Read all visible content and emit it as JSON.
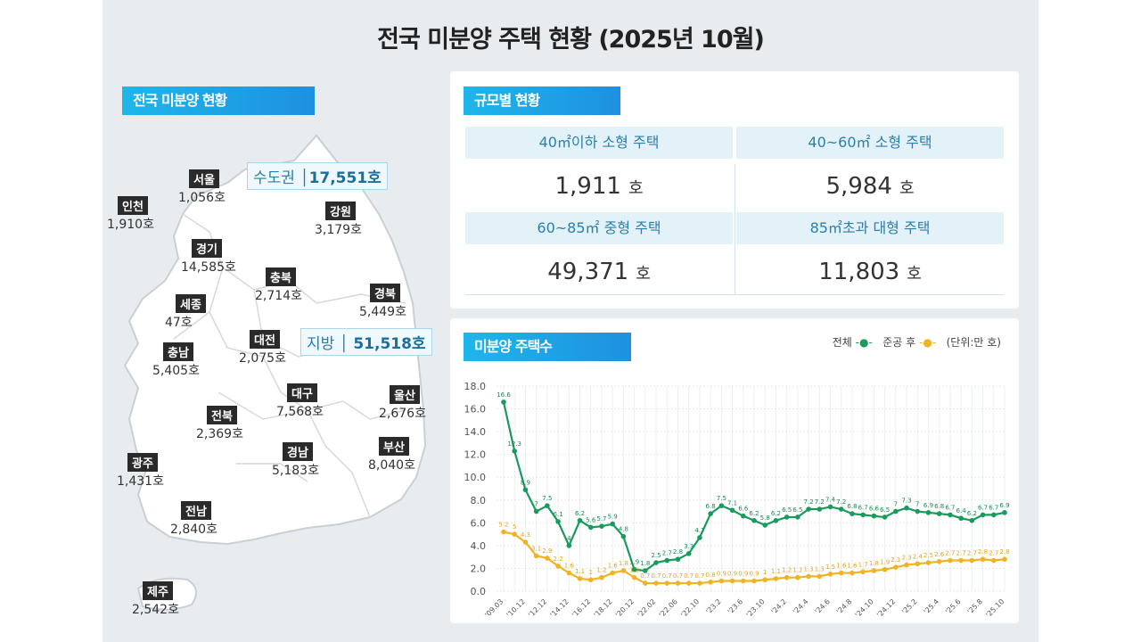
{
  "title": "전국 미분양 주택 현황 (2025년 10월)",
  "map_panel": {
    "heading": "전국 미분양 현황",
    "capital_area": {
      "label": "수도권",
      "value": "17,551호"
    },
    "provinces_total": {
      "label": "지방",
      "value": "51,518호"
    },
    "regions": [
      {
        "name": "서울",
        "value": "1,056호"
      },
      {
        "name": "인천",
        "value": "1,910호"
      },
      {
        "name": "강원",
        "value": "3,179호"
      },
      {
        "name": "경기",
        "value": "14,585호"
      },
      {
        "name": "충북",
        "value": "2,714호"
      },
      {
        "name": "경북",
        "value": "5,449호"
      },
      {
        "name": "세종",
        "value": "47호"
      },
      {
        "name": "대전",
        "value": "2,075호"
      },
      {
        "name": "충남",
        "value": "5,405호"
      },
      {
        "name": "대구",
        "value": "7,568호"
      },
      {
        "name": "울산",
        "value": "2,676호"
      },
      {
        "name": "전북",
        "value": "2,369호"
      },
      {
        "name": "경남",
        "value": "5,183호"
      },
      {
        "name": "부산",
        "value": "8,040호"
      },
      {
        "name": "광주",
        "value": "1,431호"
      },
      {
        "name": "전남",
        "value": "2,840호"
      },
      {
        "name": "제주",
        "value": "2,542호"
      }
    ]
  },
  "size_panel": {
    "heading": "규모별 현황",
    "unit": "호",
    "cells": [
      {
        "label": "40㎡이하 소형 주택",
        "value": "1,911"
      },
      {
        "label": "40~60㎡ 소형 주택",
        "value": "5,984"
      },
      {
        "label": "60~85㎡ 중형 주택",
        "value": "49,371"
      },
      {
        "label": "85㎡초과 대형 주택",
        "value": "11,803"
      }
    ]
  },
  "chart_panel": {
    "heading": "미분양 주택수",
    "legend_total": "전체",
    "legend_completed": "준공 후",
    "unit_note": "(단위:만 호)"
  },
  "colors": {
    "total": "#1a9a5c",
    "completed": "#f0b323",
    "accent": "#1fb6ea"
  },
  "chart_data": {
    "type": "line",
    "ylim": [
      0,
      18
    ],
    "yticks": [
      "0.0",
      "2.0",
      "4.0",
      "6.0",
      "8.0",
      "10.0",
      "12.0",
      "14.0",
      "16.0",
      "18.0"
    ],
    "xtick_labels": [
      "'09.03",
      "'10.12",
      "'12.12",
      "'14.12",
      "'16.12",
      "'18.12",
      "'20.12",
      "'22.02",
      "'22.06",
      "'22.10",
      "'23.2",
      "'23.6",
      "'23.10",
      "'24.2",
      "'24.4",
      "'24.6",
      "'24.8",
      "'24.10",
      "'24.12",
      "'25.2",
      "'25.4",
      "'25.6",
      "'25.8",
      "'25.10"
    ],
    "grid": true,
    "legend_position": "top-right",
    "series": [
      {
        "name": "전체",
        "values": [
          16.6,
          12.3,
          8.9,
          7.0,
          7.5,
          6.1,
          4.0,
          6.2,
          5.6,
          5.7,
          5.9,
          4.8,
          1.9,
          1.8,
          2.5,
          2.7,
          2.8,
          3.3,
          4.7,
          6.8,
          7.5,
          7.1,
          6.6,
          6.2,
          5.8,
          6.2,
          6.5,
          6.5,
          7.2,
          7.2,
          7.4,
          7.2,
          6.8,
          6.7,
          6.6,
          6.5,
          7.0,
          7.3,
          7.0,
          6.9,
          6.8,
          6.7,
          6.4,
          6.2,
          6.7,
          6.7,
          6.9
        ]
      },
      {
        "name": "준공 후",
        "values": [
          5.2,
          5.0,
          4.3,
          3.1,
          2.9,
          2.2,
          1.6,
          1.1,
          1.0,
          1.2,
          1.6,
          1.8,
          1.2,
          0.7,
          0.7,
          0.7,
          0.7,
          0.7,
          0.7,
          0.8,
          0.9,
          0.9,
          0.9,
          0.9,
          1.0,
          1.1,
          1.2,
          1.2,
          1.3,
          1.3,
          1.5,
          1.6,
          1.6,
          1.7,
          1.8,
          1.9,
          2.1,
          2.3,
          2.4,
          2.5,
          2.6,
          2.7,
          2.7,
          2.7,
          2.8,
          2.7,
          2.8
        ]
      }
    ]
  }
}
